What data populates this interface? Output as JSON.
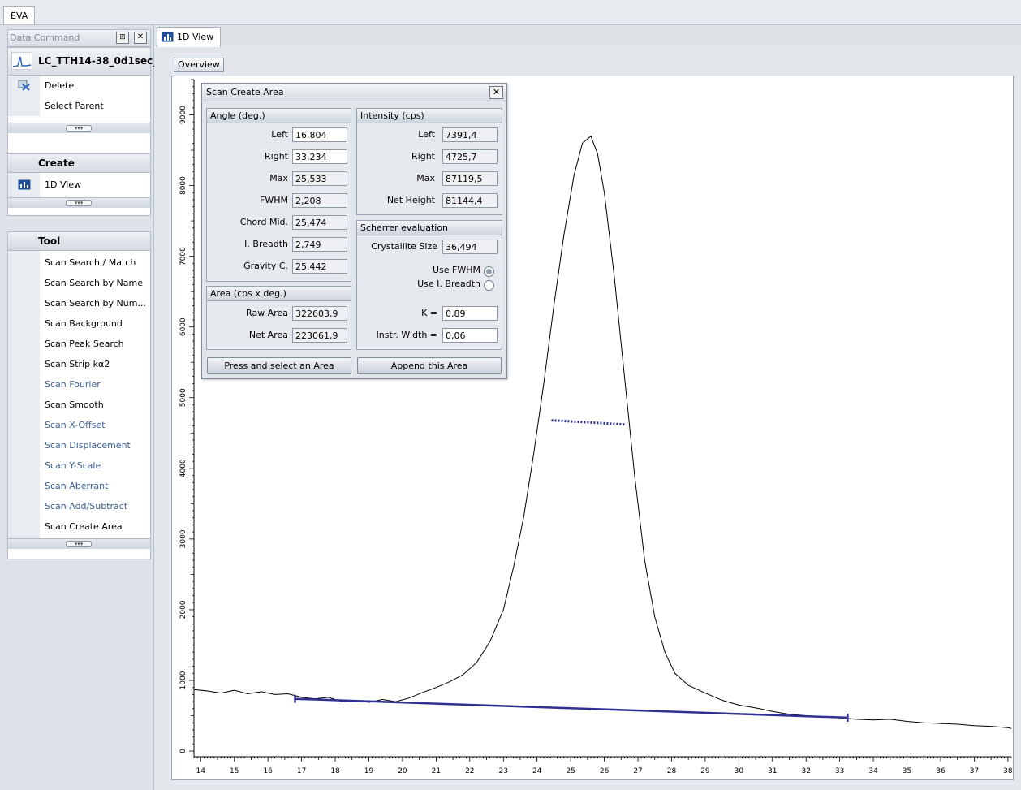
{
  "app": {
    "tab": "EVA"
  },
  "left_panel": {
    "data_command": {
      "title": "Data Command",
      "scan_name": "LC_TTH14-38_0d1sec_",
      "items": [
        {
          "label": "Delete"
        },
        {
          "label": "Select Parent"
        }
      ]
    },
    "create": {
      "title": "Create",
      "items": [
        {
          "label": "1D View"
        }
      ]
    },
    "tool": {
      "title": "Tool",
      "items": [
        {
          "label": "Scan Search / Match",
          "enabled": true
        },
        {
          "label": "Scan Search by Name",
          "enabled": true
        },
        {
          "label": "Scan Search by Num...",
          "enabled": true
        },
        {
          "label": "Scan Background",
          "enabled": true
        },
        {
          "label": "Scan Peak Search",
          "enabled": true
        },
        {
          "label": "Scan Strip kα2",
          "enabled": true
        },
        {
          "label": "Scan Fourier",
          "enabled": false
        },
        {
          "label": "Scan Smooth",
          "enabled": true
        },
        {
          "label": "Scan X-Offset",
          "enabled": false
        },
        {
          "label": "Scan Displacement",
          "enabled": false
        },
        {
          "label": "Scan Y-Scale",
          "enabled": false
        },
        {
          "label": "Scan Aberrant",
          "enabled": false
        },
        {
          "label": "Scan Add/Subtract",
          "enabled": false
        },
        {
          "label": "Scan Create Area",
          "enabled": true
        }
      ]
    }
  },
  "view": {
    "tab": "1D View",
    "overview_label": "Overview"
  },
  "dialog": {
    "title": "Scan Create Area",
    "angle": {
      "title": "Angle (deg.)",
      "left_label": "Left",
      "left": "16,804",
      "right_label": "Right",
      "right": "33,234",
      "max_label": "Max",
      "max": "25,533",
      "fwhm_label": "FWHM",
      "fwhm": "2,208",
      "chord_label": "Chord Mid.",
      "chord": "25,474",
      "breadth_label": "I. Breadth",
      "breadth": "2,749",
      "gravity_label": "Gravity C.",
      "gravity": "25,442"
    },
    "intensity": {
      "title": "Intensity (cps)",
      "left_label": "Left",
      "left": "7391,4",
      "right_label": "Right",
      "right": "4725,7",
      "max_label": "Max",
      "max": "87119,5",
      "net_label": "Net Height",
      "net": "81144,4"
    },
    "area": {
      "title": "Area (cps x deg.)",
      "raw_label": "Raw Area",
      "raw": "322603,9",
      "net_label": "Net Area",
      "net": "223061,9"
    },
    "scherrer": {
      "title": "Scherrer evaluation",
      "size_label": "Crystallite Size",
      "size": "36,494",
      "use_fwhm": "Use FWHM",
      "use_breadth": "Use I. Breadth",
      "selected": "Use FWHM",
      "k_label": "K =",
      "k": "0,89",
      "instr_label": "Instr. Width =",
      "instr": "0,06"
    },
    "buttons": {
      "press": "Press and select an Area",
      "append": "Append this Area"
    }
  },
  "chart_data": {
    "type": "line",
    "xlim": [
      13.8,
      38.1
    ],
    "ylim": [
      -80,
      9500
    ],
    "x_ticks": [
      14,
      15,
      16,
      17,
      18,
      19,
      20,
      21,
      22,
      23,
      24,
      25,
      26,
      27,
      28,
      29,
      30,
      31,
      32,
      33,
      34,
      35,
      36,
      37,
      38
    ],
    "y_ticks": [
      0,
      1000,
      2000,
      3000,
      4000,
      5000,
      6000,
      7000,
      8000,
      9000
    ],
    "series": [
      {
        "points": [
          [
            13.8,
            870
          ],
          [
            14.2,
            850
          ],
          [
            14.6,
            820
          ],
          [
            15.0,
            860
          ],
          [
            15.4,
            810
          ],
          [
            15.8,
            840
          ],
          [
            16.2,
            800
          ],
          [
            16.6,
            810
          ],
          [
            17.0,
            760
          ],
          [
            17.4,
            740
          ],
          [
            17.8,
            760
          ],
          [
            18.2,
            700
          ],
          [
            18.6,
            720
          ],
          [
            19.0,
            690
          ],
          [
            19.4,
            730
          ],
          [
            19.8,
            700
          ],
          [
            20.2,
            750
          ],
          [
            20.6,
            830
          ],
          [
            21.0,
            900
          ],
          [
            21.4,
            980
          ],
          [
            21.8,
            1080
          ],
          [
            22.2,
            1250
          ],
          [
            22.6,
            1550
          ],
          [
            23.0,
            2000
          ],
          [
            23.3,
            2600
          ],
          [
            23.6,
            3300
          ],
          [
            23.9,
            4200
          ],
          [
            24.2,
            5200
          ],
          [
            24.5,
            6300
          ],
          [
            24.8,
            7300
          ],
          [
            25.1,
            8150
          ],
          [
            25.35,
            8600
          ],
          [
            25.6,
            8700
          ],
          [
            25.8,
            8450
          ],
          [
            26.0,
            7900
          ],
          [
            26.3,
            6700
          ],
          [
            26.6,
            5300
          ],
          [
            26.9,
            3900
          ],
          [
            27.2,
            2700
          ],
          [
            27.5,
            1900
          ],
          [
            27.8,
            1400
          ],
          [
            28.1,
            1100
          ],
          [
            28.5,
            930
          ],
          [
            29.0,
            820
          ],
          [
            29.5,
            720
          ],
          [
            30.0,
            650
          ],
          [
            30.5,
            610
          ],
          [
            31.0,
            560
          ],
          [
            31.5,
            520
          ],
          [
            32.0,
            500
          ],
          [
            32.5,
            480
          ],
          [
            33.0,
            470
          ],
          [
            33.5,
            450
          ],
          [
            34.0,
            440
          ],
          [
            34.5,
            450
          ],
          [
            35.0,
            420
          ],
          [
            35.5,
            400
          ],
          [
            36.0,
            390
          ],
          [
            36.5,
            380
          ],
          [
            37.0,
            360
          ],
          [
            37.5,
            350
          ],
          [
            38.0,
            330
          ],
          [
            38.1,
            320
          ]
        ]
      }
    ],
    "background_line": {
      "x": [
        16.804,
        33.234
      ],
      "y": [
        739.14,
        472.57
      ]
    },
    "fwhm_line": {
      "x": [
        24.43,
        26.64
      ],
      "y": [
        4680,
        4620
      ]
    }
  }
}
